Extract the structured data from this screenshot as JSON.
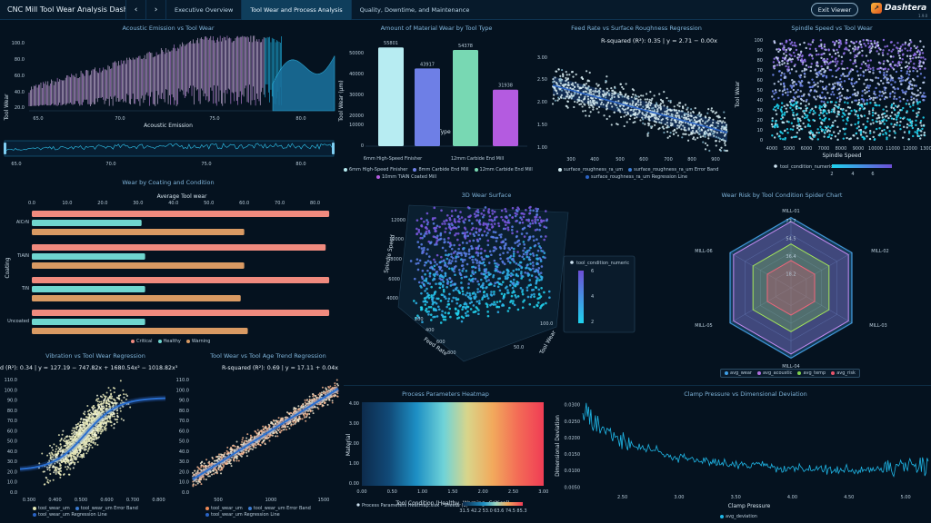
{
  "header": {
    "title": "CNC Mill Tool Wear Analysis Dashb...",
    "tabs": [
      {
        "label": "Executive Overview"
      },
      {
        "label": "Tool Wear and Process Analysis"
      },
      {
        "label": "Quality, Downtime, and Maintenance"
      }
    ],
    "exit_label": "Exit Viewer",
    "brand": "Dashtera",
    "brand_version": "1.9.0",
    "prev_icon": "chevron-left-icon",
    "next_icon": "chevron-right-icon"
  },
  "colors": {
    "background": "#05121f",
    "accent": "#1fb6e6",
    "critical": "#f08a7e",
    "healthy": "#6fd6cf",
    "warning": "#d99a63",
    "purple": "#b06ee0"
  },
  "charts": {
    "acoustic": {
      "title": "Acoustic Emission vs Tool Wear",
      "xlabel": "Acoustic Emission",
      "ylabel": "Tool Wear",
      "xticks": [
        "65.0",
        "70.0",
        "75.0",
        "80.0"
      ],
      "yticks": [
        "100.0",
        "80.0",
        "60.0",
        "40.0",
        "20.0"
      ],
      "nav_ticks": [
        "65.0",
        "70.0",
        "75.0",
        "80.0"
      ]
    },
    "material": {
      "title": "Amount of Material Wear by Tool Type",
      "xlabel": "Tool Type",
      "ylabel": "Tool Wear (µm)",
      "yticks": [
        "50000",
        "40000",
        "30000",
        "20000",
        "10000",
        "0"
      ],
      "xticks": [
        "6mm High-Speed Finisher",
        "12mm Carbide End Mill"
      ],
      "legend": [
        "6mm High-Speed Finisher",
        "8mm Carbide End Mill",
        "12mm Carbide End Mill",
        "10mm TiAlN Coated Mill"
      ]
    },
    "feed": {
      "title": "Feed Rate vs Surface Roughness Regression",
      "annotation": "R-squared (R²): 0.35 | y = 2.71 − 0.00x",
      "xticks": [
        "300",
        "400",
        "500",
        "600",
        "700",
        "800",
        "900"
      ],
      "yticks": [
        "3.00",
        "2.50",
        "2.00",
        "1.50",
        "1.00"
      ],
      "legend": [
        "surface_roughness_ra_um",
        "surface_roughness_ra_um Error Band",
        "surface_roughness_ra_um Regression Line"
      ]
    },
    "spindle": {
      "title": "Spindle Speed vs Tool Wear",
      "xlabel": "Spindle Speed",
      "ylabel": "Tool Wear",
      "xticks": [
        "4000",
        "5000",
        "6000",
        "7000",
        "8000",
        "9000",
        "10000",
        "11000",
        "12000",
        "13000"
      ],
      "yticks": [
        "100",
        "90",
        "80",
        "70",
        "60",
        "50",
        "40",
        "30",
        "20",
        "10",
        "0"
      ],
      "legend_label": "tool_condition_numeric",
      "scale_ticks": [
        "2",
        "4",
        "6"
      ]
    },
    "coating": {
      "title": "Wear by Coating and Condition",
      "xlabel": "Average Tool wear",
      "ylabel": "Coating",
      "xticks": [
        "0.0",
        "10.0",
        "20.0",
        "30.0",
        "40.0",
        "50.0",
        "60.0",
        "70.0",
        "80.0"
      ],
      "legend": [
        "Critical",
        "Healthy",
        "Warning"
      ]
    },
    "surface3d": {
      "title": "3D Wear Surface",
      "y_axis": "Spindle Speed",
      "x_axis": "Feed Rate",
      "z_axis": "Tool Wear",
      "yticks": [
        "12000",
        "10000",
        "8000",
        "6000",
        "4000"
      ],
      "xticks": [
        "200",
        "400",
        "600",
        "800"
      ],
      "zticks": [
        "50.0",
        "100.0"
      ],
      "legend_label": "tool_condition_numeric",
      "scale_ticks": [
        "6",
        "4",
        "2"
      ]
    },
    "spider": {
      "title": "Wear Risk by Tool Condition Spider Chart",
      "axes": [
        "MILL-01",
        "MILL-02",
        "MILL-03",
        "MILL-04",
        "MILL-05",
        "MILL-06"
      ],
      "rings": [
        "72.7",
        "54.5",
        "36.4",
        "18.2"
      ],
      "legend": [
        "avg_wear",
        "avg_acoustic",
        "avg_temp",
        "avg_risk"
      ]
    },
    "vibration": {
      "title": "Vibration vs Tool Wear Regression",
      "annotation": "d (R²): 0.34 | y = 127.19 − 747.82x + 1680.54x² − 1018.82x³",
      "xticks": [
        "0.300",
        "0.400",
        "0.500",
        "0.600",
        "0.700",
        "0.800"
      ],
      "yticks": [
        "110.0",
        "100.0",
        "90.0",
        "80.0",
        "70.0",
        "60.0",
        "50.0",
        "40.0",
        "30.0",
        "20.0",
        "10.0",
        "0.0"
      ],
      "legend": [
        "tool_wear_um",
        "tool_wear_um Error Band",
        "tool_wear_um Regression Line"
      ]
    },
    "toolage": {
      "title": "Tool Wear vs Tool Age Trend Regression",
      "annotation": "R-squared (R²): 0.69 | y = 17.11 + 0.04x",
      "xticks": [
        "500",
        "1000",
        "1500"
      ],
      "yticks": [
        "110.0",
        "100.0",
        "90.0",
        "80.0",
        "70.0",
        "60.0",
        "50.0",
        "40.0",
        "30.0",
        "20.0",
        "10.0",
        "0.0"
      ],
      "legend": [
        "tool_wear_um",
        "tool_wear_um Error Band",
        "tool_wear_um Regression Line"
      ]
    },
    "heatmap": {
      "title": "Process Parameters Heatmap",
      "xlabel": "Tool Condition (Healthy, Warning, Critical)",
      "ylabel": "Material",
      "xticks": [
        "0.00",
        "0.50",
        "1.00",
        "1.50",
        "2.00",
        "2.50",
        "3.00"
      ],
      "yticks": [
        "4.00",
        "3.00",
        "2.00",
        "1.00",
        "0.00"
      ],
      "legend_label": "Process Parameters Heatmap.xlsx - Sheet1 (1)",
      "scale_ticks": [
        "31.5",
        "42.2",
        "53.0",
        "63.6",
        "74.5",
        "85.3"
      ]
    },
    "clamp": {
      "title": "Clamp Pressure vs Dimensional Deviation",
      "xlabel": "Clamp Pressure",
      "ylabel": "Dimensional Deviation",
      "xticks": [
        "2.50",
        "3.00",
        "3.50",
        "4.00",
        "4.50",
        "5.00"
      ],
      "yticks": [
        "0.0300",
        "0.0250",
        "0.0200",
        "0.0150",
        "0.0100",
        "0.0050"
      ],
      "legend": [
        "avg_deviation"
      ]
    }
  },
  "chart_data": [
    {
      "type": "bar",
      "title": "Amount of Material Wear by Tool Type",
      "xlabel": "Tool Type",
      "ylabel": "Tool Wear (µm)",
      "categories": [
        "6mm High-Speed Finisher",
        "8mm Carbide End Mill",
        "12mm Carbide End Mill",
        "10mm TiAlN Coated Mill"
      ],
      "values": [
        55801,
        43917,
        54378,
        31938
      ],
      "value_labels": [
        "55801",
        "43917",
        "54378",
        "31938"
      ],
      "ylim": [
        0,
        60000
      ]
    },
    {
      "type": "bar",
      "orientation": "horizontal",
      "title": "Wear by Coating and Condition",
      "xlabel": "Average Tool wear",
      "ylabel": "Coating",
      "categories": [
        "AlCrN",
        "TiAlN",
        "TiN",
        "Uncoated"
      ],
      "series": [
        {
          "name": "Critical",
          "values": [
            84,
            83,
            84,
            84
          ]
        },
        {
          "name": "Healthy",
          "values": [
            31,
            32,
            32,
            32
          ]
        },
        {
          "name": "Warning",
          "values": [
            60,
            60,
            59,
            61
          ]
        }
      ],
      "xlim": [
        0,
        85
      ]
    },
    {
      "type": "radar",
      "title": "Wear Risk by Tool Condition Spider Chart",
      "axes": [
        "MILL-01",
        "MILL-02",
        "MILL-03",
        "MILL-04",
        "MILL-05",
        "MILL-06"
      ],
      "rmax": 72.7,
      "series": [
        {
          "name": "avg_wear",
          "values": [
            72,
            72,
            72,
            72,
            72,
            72
          ]
        },
        {
          "name": "avg_acoustic",
          "values": [
            68,
            68,
            68,
            68,
            68,
            68
          ]
        },
        {
          "name": "avg_temp",
          "values": [
            45,
            45,
            45,
            45,
            45,
            45
          ]
        },
        {
          "name": "avg_risk",
          "values": [
            28,
            28,
            28,
            28,
            28,
            28
          ]
        }
      ]
    },
    {
      "type": "line",
      "title": "Clamp Pressure vs Dimensional Deviation",
      "xlabel": "Clamp Pressure",
      "ylabel": "Dimensional Deviation",
      "x": [
        2.2,
        2.4,
        2.6,
        2.8,
        3.0,
        3.2,
        3.4,
        3.6,
        3.8,
        4.0,
        4.2,
        4.4,
        4.6,
        4.8,
        5.0,
        5.2
      ],
      "series": [
        {
          "name": "avg_deviation",
          "values": [
            0.027,
            0.021,
            0.018,
            0.016,
            0.014,
            0.013,
            0.012,
            0.0115,
            0.011,
            0.0105,
            0.0105,
            0.0102,
            0.01,
            0.0105,
            0.011,
            0.012
          ]
        }
      ],
      "xlim": [
        2.15,
        5.2
      ],
      "ylim": [
        0.004,
        0.031
      ]
    }
  ]
}
